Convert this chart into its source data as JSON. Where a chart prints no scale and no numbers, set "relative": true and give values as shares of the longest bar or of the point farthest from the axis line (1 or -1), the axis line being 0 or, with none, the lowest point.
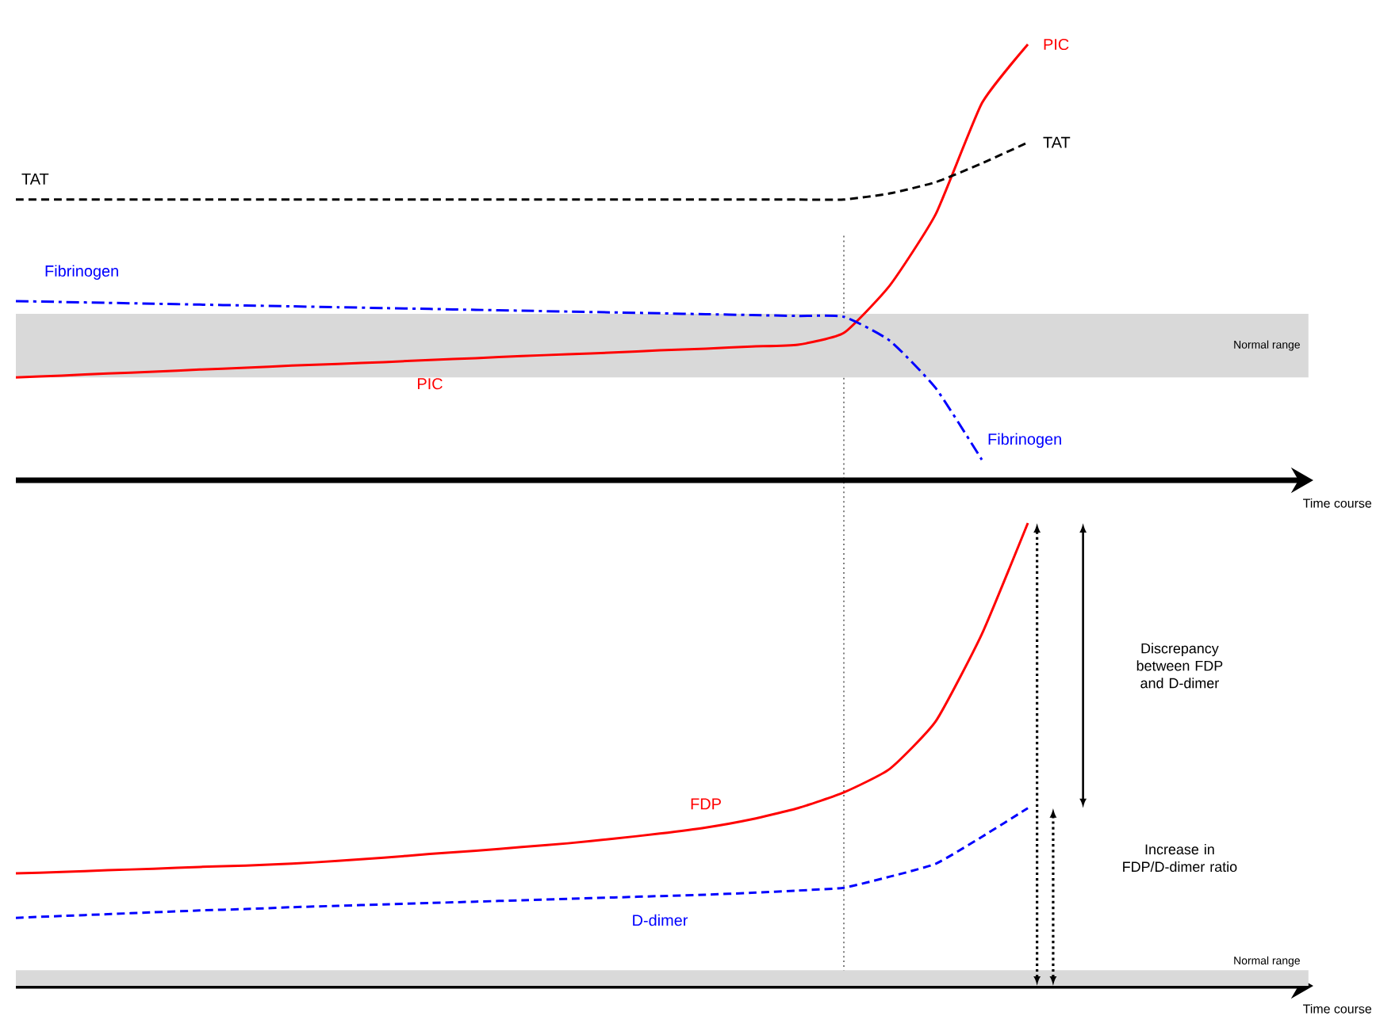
{
  "chart_data": [
    {
      "type": "line",
      "relative": true,
      "xlabel": "Time course",
      "categories": [
        null,
        null,
        null,
        null,
        null,
        null,
        null,
        null,
        null,
        null,
        null,
        null,
        null,
        null,
        null,
        null,
        null,
        null,
        null,
        null,
        null,
        null,
        null,
        null,
        null,
        null,
        null,
        null,
        null
      ],
      "series": [
        {
          "name": "PIC",
          "color": "#ff0000",
          "line_style": "solid",
          "values": [
            0.236,
            0.24,
            0.245,
            0.249,
            0.254,
            0.258,
            0.263,
            0.267,
            0.271,
            0.276,
            0.28,
            0.285,
            0.289,
            0.293,
            0.298,
            0.302,
            0.307,
            0.311,
            0.338,
            0.447,
            0.611,
            0.865,
            1.0,
            null,
            null,
            null,
            null,
            null,
            null
          ]
        },
        {
          "name": "TAT",
          "color": "#000000",
          "line_style": "dashed",
          "values": [
            0.644,
            0.644,
            0.644,
            0.644,
            0.644,
            0.644,
            0.644,
            0.644,
            0.644,
            0.644,
            0.644,
            0.644,
            0.644,
            0.644,
            0.644,
            0.644,
            0.644,
            0.644,
            0.644,
            0.658,
            0.684,
            0.727,
            0.775,
            null,
            null,
            null,
            null,
            null,
            null
          ]
        },
        {
          "name": "Fibrinogen",
          "color": "#0000ff",
          "line_style": "dashdot",
          "values": [
            0.411,
            0.409,
            0.407,
            0.405,
            0.403,
            0.401,
            0.399,
            0.397,
            0.395,
            0.393,
            0.391,
            0.389,
            0.387,
            0.385,
            0.383,
            0.381,
            0.379,
            0.377,
            0.375,
            0.32,
            0.211,
            0.047,
            null,
            null,
            null,
            null,
            null,
            null,
            null
          ]
        }
      ],
      "bands": [
        {
          "axis": "y",
          "from": 0.236,
          "to": 0.382,
          "label": "Normal range",
          "color": "#d9d9d9"
        }
      ]
    },
    {
      "type": "line",
      "relative": true,
      "xlabel": "Time course",
      "categories": [
        null,
        null,
        null,
        null,
        null,
        null,
        null,
        null,
        null,
        null,
        null,
        null,
        null,
        null,
        null,
        null,
        null,
        null,
        null,
        null,
        null,
        null,
        null,
        null,
        null,
        null,
        null,
        null,
        null
      ],
      "series": [
        {
          "name": "FDP",
          "color": "#ff0000",
          "line_style": "solid",
          "values": [
            0.243,
            0.246,
            0.25,
            0.253,
            0.257,
            0.26,
            0.264,
            0.27,
            0.277,
            0.285,
            0.292,
            0.3,
            0.308,
            0.318,
            0.329,
            0.342,
            0.36,
            0.384,
            0.418,
            0.469,
            0.572,
            0.76,
            1.0,
            null,
            null,
            null,
            null,
            null,
            null
          ]
        },
        {
          "name": "D-dimer",
          "color": "#0000ff",
          "line_style": "dashed",
          "values": [
            0.147,
            0.151,
            0.155,
            0.159,
            0.163,
            0.166,
            0.17,
            0.173,
            0.176,
            0.179,
            0.182,
            0.185,
            0.188,
            0.191,
            0.194,
            0.197,
            0.201,
            0.206,
            0.212,
            0.236,
            0.264,
            0.322,
            0.384,
            null,
            null,
            null,
            null,
            null,
            null
          ]
        }
      ],
      "bands": [
        {
          "axis": "y",
          "from": 0,
          "to": 0.034,
          "label": "Normal range",
          "color": "#d9d9d9"
        }
      ],
      "annotations": [
        "Discrepancy between FDP and D-dimer",
        "Increase in FDP/D-dimer ratio"
      ]
    }
  ]
}
